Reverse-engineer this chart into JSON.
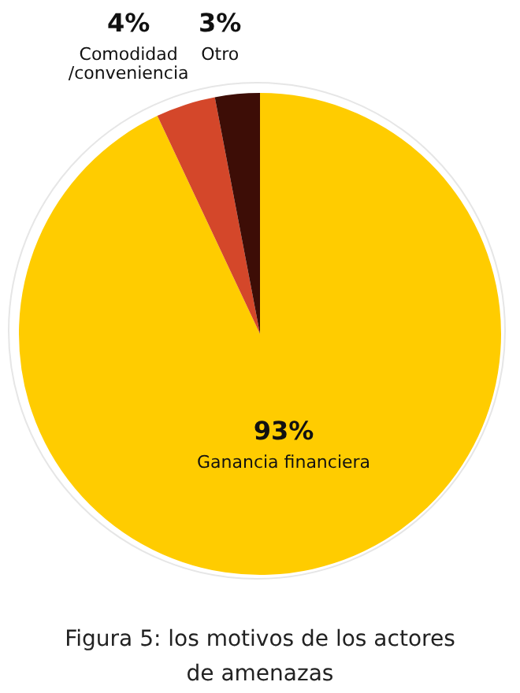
{
  "chart_data": {
    "type": "pie",
    "categories": [
      "Ganancia financiera",
      "Comodidad /conveniencia",
      "Otro"
    ],
    "values": [
      93,
      4,
      3
    ],
    "colors": [
      "#ffcc00",
      "#d4472a",
      "#3d0d06"
    ],
    "value_labels": [
      "93%",
      "4%",
      "3%"
    ],
    "legend": false,
    "annotations": [
      "Figura 5: los motivos de los actores de amenazas"
    ]
  }
}
